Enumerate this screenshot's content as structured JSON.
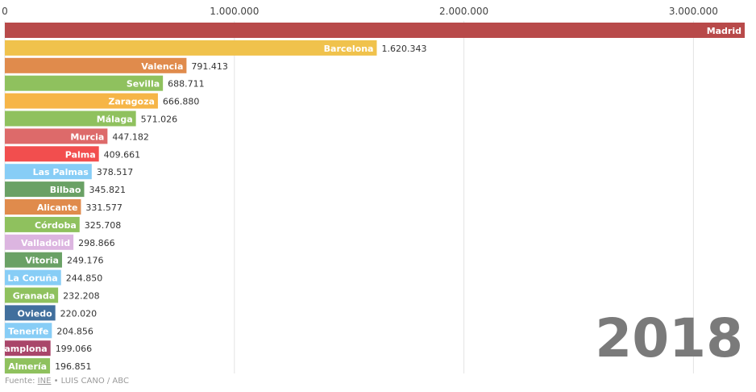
{
  "chart_data": {
    "type": "bar",
    "orientation": "horizontal",
    "year_label": "2018",
    "xlim": [
      0,
      3223334
    ],
    "x_ticks": [
      0,
      1000000,
      2000000,
      3000000
    ],
    "x_tick_labels": [
      "0",
      "1.000.000",
      "2.000.000",
      "3.000.000"
    ],
    "grid": true,
    "categories": [
      "Madrid",
      "Barcelona",
      "Valencia",
      "Sevilla",
      "Zaragoza",
      "Málaga",
      "Murcia",
      "Palma",
      "Las Palmas",
      "Bilbao",
      "Alicante",
      "Córdoba",
      "Valladolid",
      "Vitoria",
      "La Coruña",
      "Granada",
      "Oviedo",
      "S.C. Tenerife",
      "Pamplona",
      "Almería"
    ],
    "values": [
      3223334,
      1620343,
      791413,
      688711,
      666880,
      571026,
      447182,
      409661,
      378517,
      345821,
      331577,
      325708,
      298866,
      249176,
      244850,
      232208,
      220020,
      204856,
      199066,
      196851
    ],
    "value_labels": [
      "",
      "1.620.343",
      "791.413",
      "688.711",
      "666.880",
      "571.026",
      "447.182",
      "409.661",
      "378.517",
      "345.821",
      "331.577",
      "325.708",
      "298.866",
      "249.176",
      "244.850",
      "232.208",
      "220.020",
      "204.856",
      "199.066",
      "196.851"
    ],
    "colors": [
      "#b84a4a",
      "#f0c24c",
      "#e08b4c",
      "#8fc15e",
      "#f6b547",
      "#8fc15e",
      "#dd6a6a",
      "#f24e4e",
      "#87cdf6",
      "#6aa165",
      "#e08b4c",
      "#8fc15e",
      "#dcb5e0",
      "#6aa165",
      "#87cdf6",
      "#8fc15e",
      "#416f9d",
      "#87cdf6",
      "#a9466a",
      "#8fc15e"
    ]
  },
  "source": {
    "prefix": "Fuente: ",
    "link": "INE",
    "suffix": " • LUIS CANO / ABC"
  }
}
